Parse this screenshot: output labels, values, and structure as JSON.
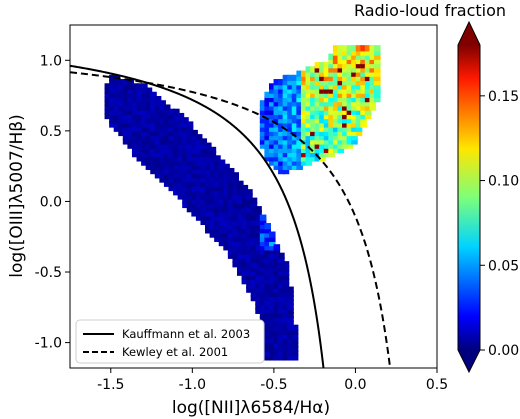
{
  "chart_data": {
    "type": "heatmap",
    "title": "",
    "xlabel": "log([NII]λ6584/Hα)",
    "ylabel": "log([OIII]λ5007/Hβ)",
    "xlim": [
      -1.75,
      0.5
    ],
    "ylim": [
      -1.18,
      1.25
    ],
    "xticks": [
      "-1.5",
      "-1.0",
      "-0.5",
      "0.0",
      "0.5"
    ],
    "xtick_values": [
      -1.5,
      -1.0,
      -0.5,
      0.0,
      0.5
    ],
    "yticks": [
      "1.0",
      "0.5",
      "0.0",
      "-0.5",
      "-1.0"
    ],
    "ytick_values": [
      1.0,
      0.5,
      0.0,
      -0.5,
      -1.0
    ],
    "colorbar": {
      "label": "Radio-loud fraction",
      "range": [
        0.0,
        0.18
      ],
      "ticks": [
        "0.00",
        "0.05",
        "0.10",
        "0.15"
      ],
      "tick_values": [
        0.0,
        0.05,
        0.1,
        0.15
      ],
      "colormap": "jet",
      "extend": "both"
    },
    "series": [
      {
        "name": "Kauffmann et al. 2003",
        "style": "solid",
        "equation": "y = 0.61/(x - 0.05) + 1.3"
      },
      {
        "name": "Kewley et al. 2001",
        "style": "dashed",
        "equation": "y = 0.61/(x - 0.47) + 1.19"
      }
    ],
    "legend_location": "lower-left",
    "fraction_field": {
      "low_value_region": "star-forming branch, fraction ≈ 0.00–0.02",
      "high_value_region": "upper-right AGN wing, fraction ≈ 0.05–0.18"
    }
  }
}
